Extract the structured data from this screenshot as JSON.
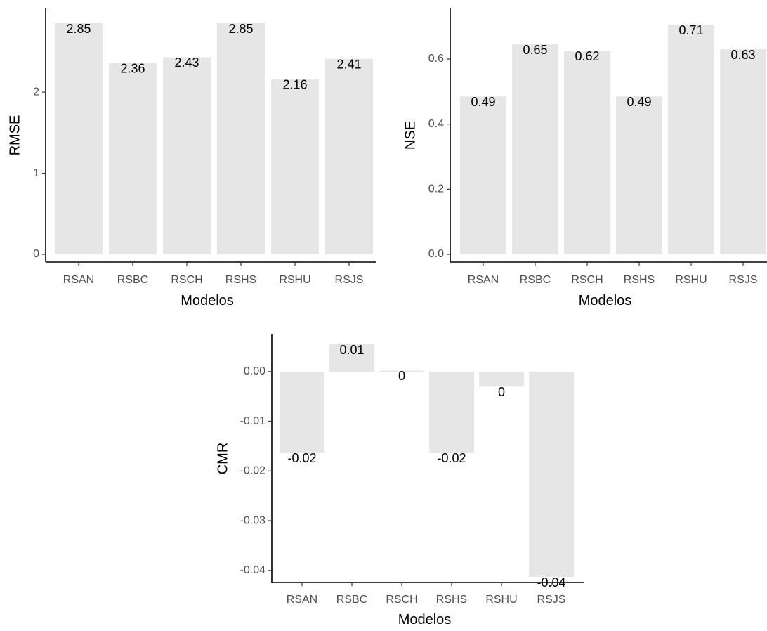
{
  "chart_data": [
    {
      "type": "bar",
      "categories": [
        "RSAN",
        "RSBC",
        "RSCH",
        "RSHS",
        "RSHU",
        "RSJS"
      ],
      "values": [
        2.85,
        2.36,
        2.43,
        2.85,
        2.16,
        2.41
      ],
      "value_labels": [
        "2.85",
        "2.36",
        "2.43",
        "2.85",
        "2.16",
        "2.41"
      ],
      "xlabel": "Modelos",
      "ylabel": "RMSE",
      "yticks": [
        0,
        1,
        2
      ],
      "ytick_labels": [
        "0",
        "1",
        "2"
      ],
      "ylim": [
        0,
        2.85
      ],
      "grid": false,
      "bar_color": "#e6e6e6"
    },
    {
      "type": "bar",
      "categories": [
        "RSAN",
        "RSBC",
        "RSCH",
        "RSHS",
        "RSHU",
        "RSJS"
      ],
      "values": [
        0.485,
        0.645,
        0.625,
        0.485,
        0.705,
        0.63
      ],
      "value_labels": [
        "0.49",
        "0.65",
        "0.62",
        "0.49",
        "0.71",
        "0.63"
      ],
      "xlabel": "Modelos",
      "ylabel": "NSE",
      "yticks": [
        0,
        0.2,
        0.4,
        0.6
      ],
      "ytick_labels": [
        "0.0",
        "0.2",
        "0.4",
        "0.6"
      ],
      "ylim": [
        0,
        0.71
      ],
      "grid": false,
      "bar_color": "#e6e6e6"
    },
    {
      "type": "bar",
      "categories": [
        "RSAN",
        "RSBC",
        "RSCH",
        "RSHS",
        "RSHU",
        "RSJS"
      ],
      "values": [
        -0.0163,
        0.0055,
        0.0002,
        -0.0163,
        -0.003,
        -0.0413
      ],
      "value_labels": [
        "-0.02",
        "0.01",
        "0",
        "-0.02",
        "0",
        "-0.04"
      ],
      "xlabel": "Modelos",
      "ylabel": "CMR",
      "yticks": [
        0,
        -0.01,
        -0.02,
        -0.03,
        -0.04
      ],
      "ytick_labels": [
        "0.00",
        "-0.01",
        "-0.02",
        "-0.03",
        "-0.04"
      ],
      "ylim": [
        -0.0413,
        0.0055
      ],
      "grid": false,
      "bar_color": "#e6e6e6"
    }
  ]
}
